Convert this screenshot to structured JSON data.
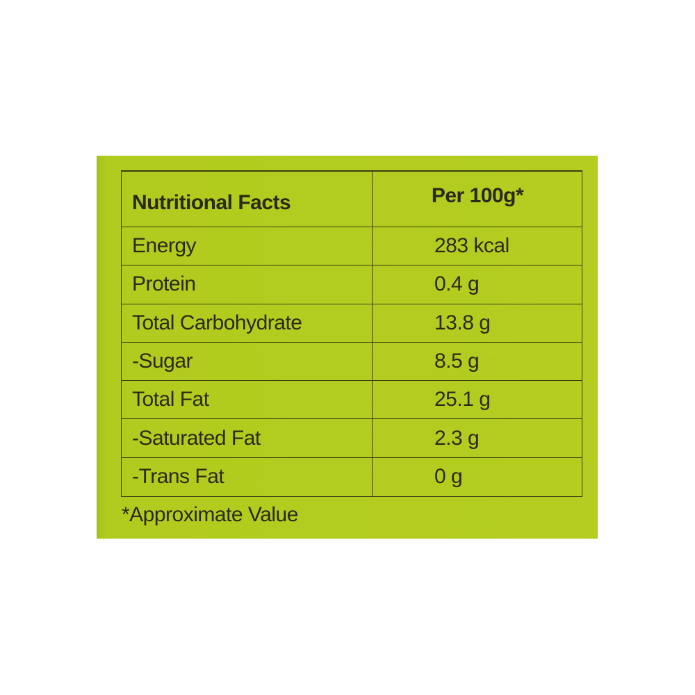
{
  "table": {
    "header": [
      "Nutritional Facts",
      "Per 100g*"
    ],
    "rows": [
      [
        "Energy",
        "283 kcal"
      ],
      [
        "Protein",
        "0.4 g"
      ],
      [
        "Total Carbohydrate",
        "13.8 g"
      ],
      [
        "-Sugar",
        "8.5 g"
      ],
      [
        "Total Fat",
        "25.1 g"
      ],
      [
        "-Saturated Fat",
        "2.3 g"
      ],
      [
        "-Trans Fat",
        "0 g"
      ]
    ]
  },
  "footnote": "*Approximate Value"
}
